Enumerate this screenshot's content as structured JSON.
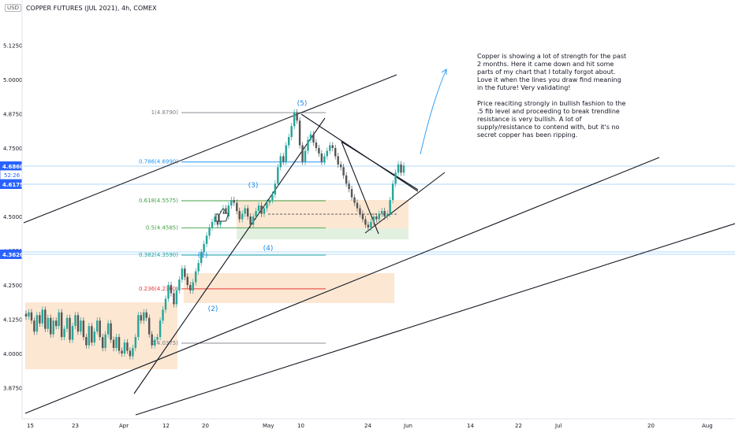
{
  "header": {
    "currency_badge": "USD",
    "symbol_title": "COPPER FUTURES (JUL 2021), 4h, COMEX"
  },
  "note": {
    "paragraph1": "Copper is showing a lot of strength for the past 2 months. Here it came down and hit some parts of my chart that I totally forgot about. Love it when the lines you draw find meaning in the future! Very validating!",
    "paragraph2": "Price reaciting strongly in bullish fashion to the .5 fib level and proceeding to break trendline resistance is very bullish. A lot of supply/resistance to contend with, but it's no secret copper has been ripping."
  },
  "colors": {
    "bull": "#26a69a",
    "bear": "#555555",
    "wave_label": "#1e88e5",
    "zone": "#fbe1c8",
    "zone_green": "#dfeedd",
    "price_tag": "#2962ff",
    "fib_red": "#e53935",
    "fib_green": "#43a047",
    "fib_blue": "#2196f3",
    "fib_gray": "#787b86",
    "trendline": "#131722"
  },
  "icons": {
    "thumbs_up": "thumbs-up-icon"
  },
  "chart_data": {
    "type": "candlestick",
    "y_ticks": [
      "5.1250",
      "5.0000",
      "4.8750",
      "4.7500",
      "4.6250",
      "4.5000",
      "4.3750",
      "4.2500",
      "4.1250",
      "4.0000",
      "3.8750"
    ],
    "y_tick_values": [
      5.125,
      5.0,
      4.875,
      4.75,
      4.625,
      4.5,
      4.375,
      4.25,
      4.125,
      4.0,
      3.875
    ],
    "ylim": [
      3.8,
      5.2
    ],
    "x_ticks": [
      "15",
      "23",
      "Apr",
      "12",
      "20",
      "May",
      "10",
      "24",
      "Jun",
      "14",
      "22",
      "Jul",
      "20",
      "Aug"
    ],
    "price_tags": [
      {
        "label": "4.6860",
        "sub": "",
        "value": 4.686,
        "style": "solid"
      },
      {
        "label": "",
        "sub": "52:26",
        "value": 4.666,
        "style": "outline"
      },
      {
        "label": "4.6175",
        "sub": "",
        "value": 4.6175,
        "style": "solid"
      },
      {
        "label": "4.3620",
        "sub": "",
        "value": 4.362,
        "style": "solid"
      }
    ],
    "fib_levels": [
      {
        "ratio": "1",
        "label": "1(4.8790)",
        "value": 4.879,
        "color": "#787b86"
      },
      {
        "ratio": "0.786",
        "label": "0.786(4.6990)",
        "value": 4.699,
        "color": "#2196f3"
      },
      {
        "ratio": "0.618",
        "label": "0.618(4.5575)",
        "value": 4.5575,
        "color": "#43a047"
      },
      {
        "ratio": "0.5",
        "label": "0.5(4.4585)",
        "value": 4.4585,
        "color": "#43a047"
      },
      {
        "ratio": "0.382",
        "label": "0.382(4.3590)",
        "value": 4.359,
        "color": "#26a69a"
      },
      {
        "ratio": "0.236",
        "label": "0.236(4.2360)",
        "value": 4.236,
        "color": "#e53935"
      },
      {
        "ratio": "0",
        "label": "0(4.0375)",
        "value": 4.0375,
        "color": "#787b86"
      }
    ],
    "wave_labels": [
      {
        "label": "(1)",
        "x_date": "Apr 16",
        "value": 4.31
      },
      {
        "label": "(2)",
        "x_date": "Apr 17",
        "value": 4.17
      },
      {
        "label": "(3)",
        "x_date": "Apr 28",
        "value": 4.6
      },
      {
        "label": "(4)",
        "x_date": "May 2",
        "value": 4.4
      },
      {
        "label": "(5)",
        "x_date": "May 10",
        "value": 4.89
      }
    ],
    "close_series": [
      4.135,
      4.15,
      4.12,
      4.08,
      4.14,
      4.11,
      4.16,
      4.09,
      4.13,
      4.07,
      4.12,
      4.1,
      4.15,
      4.06,
      4.09,
      4.13,
      4.05,
      4.1,
      4.14,
      4.08,
      4.12,
      4.06,
      4.03,
      4.1,
      4.04,
      4.08,
      4.12,
      4.06,
      4.02,
      4.07,
      4.11,
      4.05,
      4.02,
      4.06,
      4.01,
      4.0,
      4.04,
      4.01,
      3.99,
      4.02,
      4.06,
      4.14,
      4.12,
      4.15,
      4.13,
      4.07,
      4.03,
      4.05,
      4.06,
      4.12,
      4.16,
      4.2,
      4.25,
      4.22,
      4.18,
      4.23,
      4.27,
      4.31,
      4.28,
      4.25,
      4.23,
      4.26,
      4.3,
      4.33,
      4.37,
      4.4,
      4.43,
      4.46,
      4.48,
      4.5,
      4.47,
      4.51,
      4.53,
      4.5,
      4.54,
      4.56,
      4.55,
      4.52,
      4.49,
      4.51,
      4.53,
      4.5,
      4.47,
      4.5,
      4.52,
      4.54,
      4.51,
      4.53,
      4.55,
      4.56,
      4.58,
      4.62,
      4.68,
      4.72,
      4.7,
      4.76,
      4.79,
      4.83,
      4.88,
      4.85,
      4.76,
      4.7,
      4.74,
      4.78,
      4.8,
      4.77,
      4.75,
      4.73,
      4.7,
      4.72,
      4.74,
      4.76,
      4.75,
      4.72,
      4.69,
      4.68,
      4.65,
      4.62,
      4.6,
      4.57,
      4.55,
      4.53,
      4.51,
      4.49,
      4.47,
      4.46,
      4.48,
      4.5,
      4.49,
      4.51,
      4.52,
      4.5,
      4.51,
      4.56,
      4.62,
      4.66,
      4.69,
      4.66,
      4.686
    ]
  }
}
